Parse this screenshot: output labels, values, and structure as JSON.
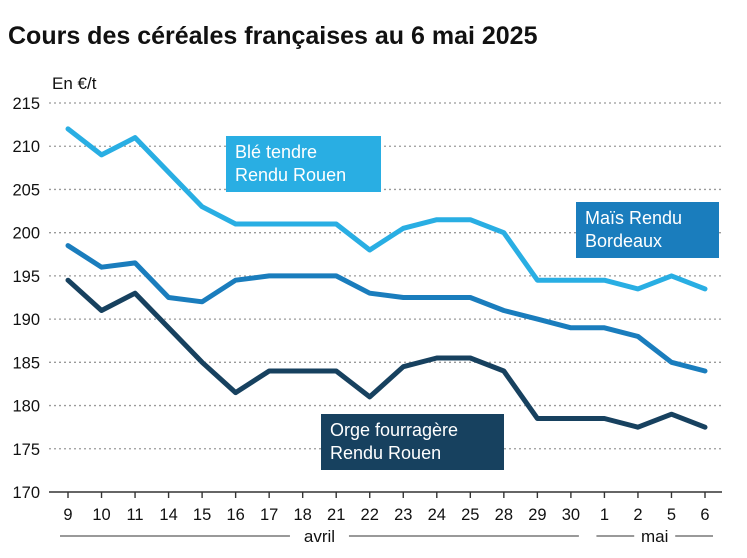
{
  "chart_data": {
    "type": "line",
    "title": "Cours des céréales françaises au 6 mai 2025",
    "ylabel": "En €/t",
    "xlabel": "",
    "ylim": [
      170,
      215
    ],
    "yticks": [
      170,
      175,
      180,
      185,
      190,
      195,
      200,
      205,
      210,
      215
    ],
    "grid": true,
    "categories": [
      "9",
      "10",
      "11",
      "14",
      "15",
      "16",
      "17",
      "18",
      "21",
      "22",
      "23",
      "24",
      "25",
      "28",
      "29",
      "30",
      "1",
      "2",
      "5",
      "6"
    ],
    "months": [
      {
        "label": "avril",
        "from": 0,
        "to": 15
      },
      {
        "label": "mai",
        "from": 16,
        "to": 19
      }
    ],
    "series": [
      {
        "name": "Blé tendre Rendu Rouen",
        "label_lines": [
          "Blé tendre",
          "Rendu Rouen"
        ],
        "color": "#29aee3",
        "values": [
          212,
          209,
          211,
          207,
          203,
          201,
          201,
          201,
          201,
          198,
          200.5,
          201.5,
          201.5,
          200,
          194.5,
          194.5,
          194.5,
          193.5,
          195,
          193.5
        ]
      },
      {
        "name": "Maïs Rendu Bordeaux",
        "label_lines": [
          "Maïs Rendu",
          "Bordeaux"
        ],
        "color": "#1a7dbd",
        "values": [
          198.5,
          196,
          196.5,
          192.5,
          192,
          194.5,
          195,
          195,
          195,
          193,
          192.5,
          192.5,
          192.5,
          191,
          190,
          189,
          189,
          188,
          185,
          184
        ]
      },
      {
        "name": "Orge fourragère Rendu Rouen",
        "label_lines": [
          "Orge fourragère",
          "Rendu Rouen"
        ],
        "color": "#17415f",
        "values": [
          194.5,
          191,
          193,
          189,
          185,
          181.5,
          184,
          184,
          184,
          181,
          184.5,
          185.5,
          185.5,
          184,
          178.5,
          178.5,
          178.5,
          177.5,
          179,
          177.5
        ]
      }
    ]
  }
}
